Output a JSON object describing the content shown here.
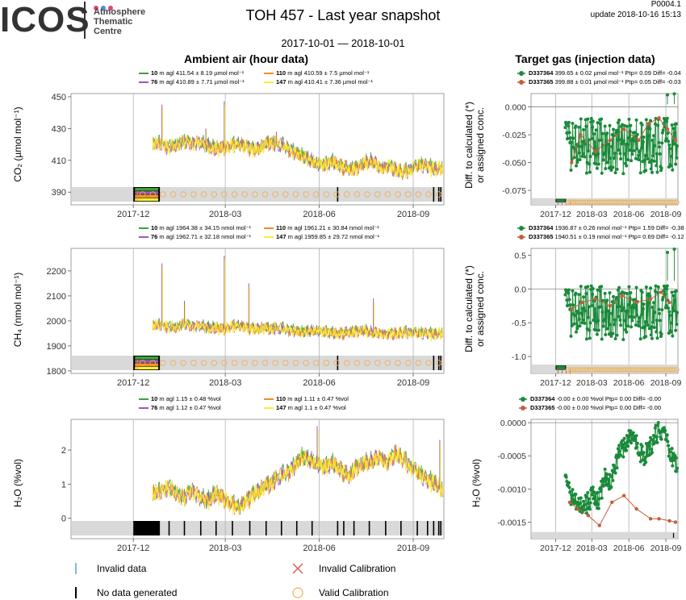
{
  "header": {
    "logo_text": "ICOS",
    "logo_sub": [
      "Atmosphere",
      "Thematic",
      "Centre"
    ],
    "logo_dot_colors": [
      "#e0457b",
      "#4a90d9",
      "#e0457b"
    ],
    "title": "TOH 457 - Last year snapshot",
    "plot_id": "P0004.1",
    "update": "update  2018-10-16 15:13",
    "date_range": "2017-10-01 — 2018-10-01",
    "left_title": "Ambient air (hour data)",
    "right_title": "Target gas (injection data)"
  },
  "colors": {
    "level_10": "#3aa537",
    "level_76": "#9b59b6",
    "level_110": "#f28c28",
    "level_147": "#ffee33",
    "D337364": "#1a8a3a",
    "D337365": "#c0603a",
    "invalid_data": "#4fa6d9",
    "invalid_cal": "#d9534f",
    "valid_cal": "#f0b050"
  },
  "ambient_legends": [
    {
      "items": [
        {
          "level": "10",
          "text": " m agl 411.54 ± 8.19 µmol mol⁻¹",
          "color_key": "level_10"
        },
        {
          "level": "110",
          "text": " m agl 410.59 ± 7.5 µmol mol⁻¹",
          "color_key": "level_110"
        },
        {
          "level": "76",
          "text": " m agl 410.89 ± 7.71 µmol mol⁻¹",
          "color_key": "level_76"
        },
        {
          "level": "147",
          "text": " m agl 410.41 ± 7.36 µmol mol⁻¹",
          "color_key": "level_147"
        }
      ]
    },
    {
      "items": [
        {
          "level": "10",
          "text": " m agl 1964.38 ± 34.15 nmol mol⁻¹",
          "color_key": "level_10"
        },
        {
          "level": "110",
          "text": " m agl 1961.21 ± 30.84 nmol mol⁻¹",
          "color_key": "level_110"
        },
        {
          "level": "76",
          "text": " m agl 1962.71 ± 32.18 nmol mol⁻¹",
          "color_key": "level_76"
        },
        {
          "level": "147",
          "text": " m agl 1959.85 ± 29.72 nmol mol⁻¹",
          "color_key": "level_147"
        }
      ]
    },
    {
      "items": [
        {
          "level": "10",
          "text": " m agl 1.15 ± 0.48 %vol",
          "color_key": "level_10"
        },
        {
          "level": "110",
          "text": " m agl 1.11 ± 0.47 %vol",
          "color_key": "level_110"
        },
        {
          "level": "76",
          "text": " m agl 1.12 ± 0.47 %vol",
          "color_key": "level_76"
        },
        {
          "level": "147",
          "text": " m agl 1.1 ± 0.47 %vol",
          "color_key": "level_147"
        }
      ]
    }
  ],
  "target_legends": [
    {
      "items": [
        {
          "name": "D337364",
          "text": " 399.65 ± 0.02 µmol mol⁻¹ Ptp= 0.09 Diff= -0.04",
          "color_key": "D337364"
        },
        {
          "name": "D337365",
          "text": " 399.88 ± 0.01 µmol mol⁻¹ Ptp= 0.05 Diff= -0.03",
          "color_key": "D337365"
        }
      ]
    },
    {
      "items": [
        {
          "name": "D337364",
          "text": " 1936.87 ± 0.26 nmol mol⁻¹ Ptp= 1.59 Diff= -0.38",
          "color_key": "D337364"
        },
        {
          "name": "D337365",
          "text": " 1940.51 ± 0.19 nmol mol⁻¹ Ptp= 0.69 Diff= -0.12",
          "color_key": "D337365"
        }
      ]
    },
    {
      "items": [
        {
          "name": "D337364",
          "text": " -0.00 ± 0.00 %vol Ptp= 0.00 Diff= -0.00",
          "color_key": "D337364"
        },
        {
          "name": "D337365",
          "text": " -0.00 ± 0.00 %vol Ptp= 0.00 Diff= -0.00",
          "color_key": "D337365"
        }
      ]
    }
  ],
  "ylabels_left": [
    "CO₂ (µmol mol⁻¹)",
    "CH₄ (nmol mol⁻¹)",
    "H₂O (%vol)"
  ],
  "ylabels_right": [
    "Diff. to calculated (*)|or assigned conc.",
    "Diff. to calculated (*)|or assigned conc.",
    "H₂O (%vol)"
  ],
  "bottom_legend": {
    "invalid_data": "Invalid data",
    "no_data": "No data generated",
    "invalid_cal": "Invalid Calibration",
    "valid_cal": "Valid Calibration"
  },
  "chart_data": [
    {
      "type": "line",
      "panel": "ambient-co2",
      "xlabels": [
        "2017-12",
        "2018-03",
        "2018-06",
        "2018-09"
      ],
      "xticks": [
        "2017-12-01",
        "2018-03-01",
        "2018-06-01",
        "2018-09-01"
      ],
      "xlim": [
        "2017-10-01",
        "2018-10-01"
      ],
      "ylim": [
        382,
        452
      ],
      "yticks": [
        390,
        410,
        430,
        450
      ],
      "data_start": "2017-12-20",
      "profile": [
        420,
        421,
        418,
        419,
        422,
        420,
        421,
        419,
        417,
        418,
        419,
        420,
        418,
        416,
        419,
        421,
        420,
        418,
        415,
        413,
        410,
        408,
        407,
        409,
        406,
        404,
        405,
        408,
        410,
        405,
        406,
        404,
        402,
        405,
        407,
        406,
        404,
        405
      ],
      "noise": 4,
      "spikes": [
        [
          "2017-12-29",
          445
        ],
        [
          "2018-02-28",
          447
        ],
        [
          "2018-02-10",
          430
        ],
        [
          "2018-04-20",
          428
        ]
      ],
      "ytext_decimals": 0,
      "no_data_block": [
        "2017-12-01",
        "2017-12-27"
      ],
      "no_data_ticks": [
        "2018-06-19",
        "2018-09-21",
        "2018-09-26",
        "2018-09-28"
      ],
      "valid_cal_every_days": 10
    },
    {
      "type": "line",
      "panel": "ambient-ch4",
      "xlabels": [
        "2017-12",
        "2018-03",
        "2018-06",
        "2018-09"
      ],
      "xticks": [
        "2017-12-01",
        "2018-03-01",
        "2018-06-01",
        "2018-09-01"
      ],
      "xlim": [
        "2017-10-01",
        "2018-10-01"
      ],
      "ylim": [
        1790,
        2290
      ],
      "yticks": [
        1800,
        1900,
        2000,
        2100,
        2200
      ],
      "data_start": "2017-12-20",
      "profile": [
        1980,
        1985,
        1975,
        1970,
        1990,
        1975,
        1980,
        1972,
        1970,
        1968,
        1975,
        1980,
        1970,
        1965,
        1972,
        1968,
        1970,
        1965,
        1960,
        1955,
        1958,
        1962,
        1955,
        1950,
        1948,
        1952,
        1958,
        1960,
        1955,
        1950,
        1945,
        1948,
        1952,
        1955,
        1950,
        1948,
        1945,
        1950
      ],
      "noise": 20,
      "spikes": [
        [
          "2017-12-29",
          2230
        ],
        [
          "2018-02-28",
          2260
        ],
        [
          "2018-03-24",
          2150
        ],
        [
          "2018-07-24",
          2090
        ],
        [
          "2018-01-20",
          2080
        ]
      ],
      "ytext_decimals": 0,
      "no_data_block": [
        "2017-12-01",
        "2017-12-27"
      ],
      "no_data_ticks": [
        "2018-06-19",
        "2018-09-21",
        "2018-09-26",
        "2018-09-28"
      ],
      "valid_cal_every_days": 10
    },
    {
      "type": "line",
      "panel": "ambient-h2o",
      "xlabels": [
        "2017-12",
        "2018-03",
        "2018-06",
        "2018-09"
      ],
      "xticks": [
        "2017-12-01",
        "2018-03-01",
        "2018-06-01",
        "2018-09-01"
      ],
      "xlim": [
        "2017-10-01",
        "2018-10-01"
      ],
      "ylim": [
        -0.6,
        2.9
      ],
      "yticks": [
        0,
        1,
        2
      ],
      "data_start": "2017-12-20",
      "profile": [
        0.7,
        0.8,
        0.9,
        0.7,
        0.6,
        0.8,
        0.6,
        0.5,
        0.7,
        0.6,
        0.4,
        0.3,
        0.5,
        0.7,
        0.9,
        1.0,
        1.2,
        1.3,
        1.5,
        1.8,
        1.7,
        1.6,
        1.5,
        1.6,
        1.4,
        1.2,
        1.5,
        1.6,
        1.7,
        1.8,
        1.6,
        1.9,
        1.7,
        1.5,
        1.3,
        1.1,
        1.0,
        0.8
      ],
      "noise": 0.22,
      "spikes": [
        [
          "2018-05-30",
          2.7
        ],
        [
          "2018-09-27",
          2.3
        ]
      ],
      "ytext_decimals": 0,
      "no_data_block": [
        "2017-12-01",
        "2017-12-27"
      ],
      "no_data_ticks": [
        "2018-01-05",
        "2018-01-20",
        "2018-02-05",
        "2018-02-20",
        "2018-03-08",
        "2018-03-25",
        "2018-04-10",
        "2018-04-25",
        "2018-05-10",
        "2018-05-25",
        "2018-06-19",
        "2018-06-25",
        "2018-07-05",
        "2018-07-20",
        "2018-08-05",
        "2018-08-20",
        "2018-09-05",
        "2018-09-15",
        "2018-09-21",
        "2018-09-26",
        "2018-09-28"
      ],
      "valid_cal_every_days": 0
    },
    {
      "type": "scatter",
      "panel": "target-co2",
      "xlabels": [
        "2017-12",
        "2018-03",
        "2018-06",
        "2018-09"
      ],
      "xticks": [
        "2017-12-01",
        "2018-03-01",
        "2018-06-01",
        "2018-09-01"
      ],
      "xlim": [
        "2017-10-01",
        "2018-10-01"
      ],
      "ylim": [
        -0.088,
        0.012
      ],
      "yticks": [
        -0.075,
        -0.05,
        -0.025,
        0.0
      ],
      "ytick_labels": [
        "-0.075",
        "-0.050",
        "-0.025",
        "0.000"
      ],
      "series": [
        {
          "name": "D337364",
          "mean": -0.035,
          "spread": 0.025,
          "start": "2017-12-25"
        },
        {
          "name": "D337365",
          "points": [
            [
              "2018-01-10",
              -0.05
            ],
            [
              "2018-02-01",
              -0.025
            ],
            [
              "2018-03-10",
              -0.04
            ],
            [
              "2018-04-15",
              -0.03
            ],
            [
              "2018-05-20",
              -0.02
            ],
            [
              "2018-06-25",
              -0.03
            ],
            [
              "2018-07-20",
              -0.015
            ],
            [
              "2018-08-15",
              -0.01
            ],
            [
              "2018-09-05",
              -0.02
            ],
            [
              "2018-09-25",
              -0.03
            ]
          ]
        }
      ],
      "flag_band": [
        -0.088,
        -0.082
      ],
      "valid_cal_every_days": 6
    },
    {
      "type": "scatter",
      "panel": "target-ch4",
      "xlabels": [
        "2017-12",
        "2018-03",
        "2018-06",
        "2018-09"
      ],
      "xticks": [
        "2017-12-01",
        "2018-03-01",
        "2018-06-01",
        "2018-09-01"
      ],
      "xlim": [
        "2017-10-01",
        "2018-10-01"
      ],
      "ylim": [
        -1.25,
        0.6
      ],
      "yticks": [
        -1.0,
        -0.5,
        0.0,
        0.5
      ],
      "ytick_labels": [
        "-1.0",
        "-0.5",
        "0.0",
        "0.5"
      ],
      "series": [
        {
          "name": "D337364",
          "mean": -0.35,
          "spread": 0.4,
          "start": "2017-12-25"
        },
        {
          "name": "D337365",
          "points": [
            [
              "2018-01-10",
              -0.3
            ],
            [
              "2018-02-05",
              -0.2
            ],
            [
              "2018-03-10",
              -0.15
            ],
            [
              "2018-04-15",
              -0.25
            ],
            [
              "2018-05-15",
              -0.1
            ],
            [
              "2018-06-20",
              -0.2
            ],
            [
              "2018-07-25",
              -0.15
            ],
            [
              "2018-08-20",
              -0.05
            ],
            [
              "2018-09-10",
              -0.2
            ]
          ]
        }
      ],
      "flag_band": [
        -1.25,
        -1.12
      ],
      "valid_cal_every_days": 6
    },
    {
      "type": "scatter",
      "panel": "target-h2o",
      "xlabels": [
        "2017-12",
        "2018-03",
        "2018-06",
        "2018-09"
      ],
      "xticks": [
        "2017-12-01",
        "2018-03-01",
        "2018-06-01",
        "2018-09-01"
      ],
      "xlim": [
        "2017-10-01",
        "2018-10-01"
      ],
      "ylim": [
        -0.00175,
        5e-05
      ],
      "yticks": [
        -0.0015,
        -0.001,
        -0.0005,
        0.0
      ],
      "ytick_labels": [
        "-0.0015",
        "-0.0010",
        "-0.0005",
        "0.0000"
      ],
      "series": [
        {
          "name": "D337364",
          "path": [
            -0.0009,
            -0.0011,
            -0.0012,
            -0.0013,
            -0.0012,
            -0.0011,
            -0.0012,
            -0.0008,
            -0.0009,
            -0.0006,
            -0.0004,
            -0.0003,
            -0.0002,
            -0.0004,
            -0.0005,
            -0.0004,
            -0.0002,
            -0.0001,
            -0.0003,
            -0.0005,
            -0.0007
          ],
          "spread": 0.00015,
          "start": "2017-12-25"
        },
        {
          "name": "D337365",
          "points": [
            [
              "2018-01-05",
              -0.0012
            ],
            [
              "2018-01-25",
              -0.0013
            ],
            [
              "2018-02-20",
              -0.0014
            ],
            [
              "2018-03-20",
              -0.00155
            ],
            [
              "2018-04-20",
              -0.0012
            ],
            [
              "2018-05-20",
              -0.0011
            ],
            [
              "2018-06-20",
              -0.0013
            ],
            [
              "2018-07-25",
              -0.00145
            ],
            [
              "2018-08-15",
              -0.00145
            ],
            [
              "2018-09-10",
              -0.00148
            ],
            [
              "2018-09-25",
              -0.0015
            ]
          ]
        }
      ],
      "flag_band": [
        -0.00175,
        -0.00165
      ],
      "valid_cal_every_days": 0
    }
  ]
}
